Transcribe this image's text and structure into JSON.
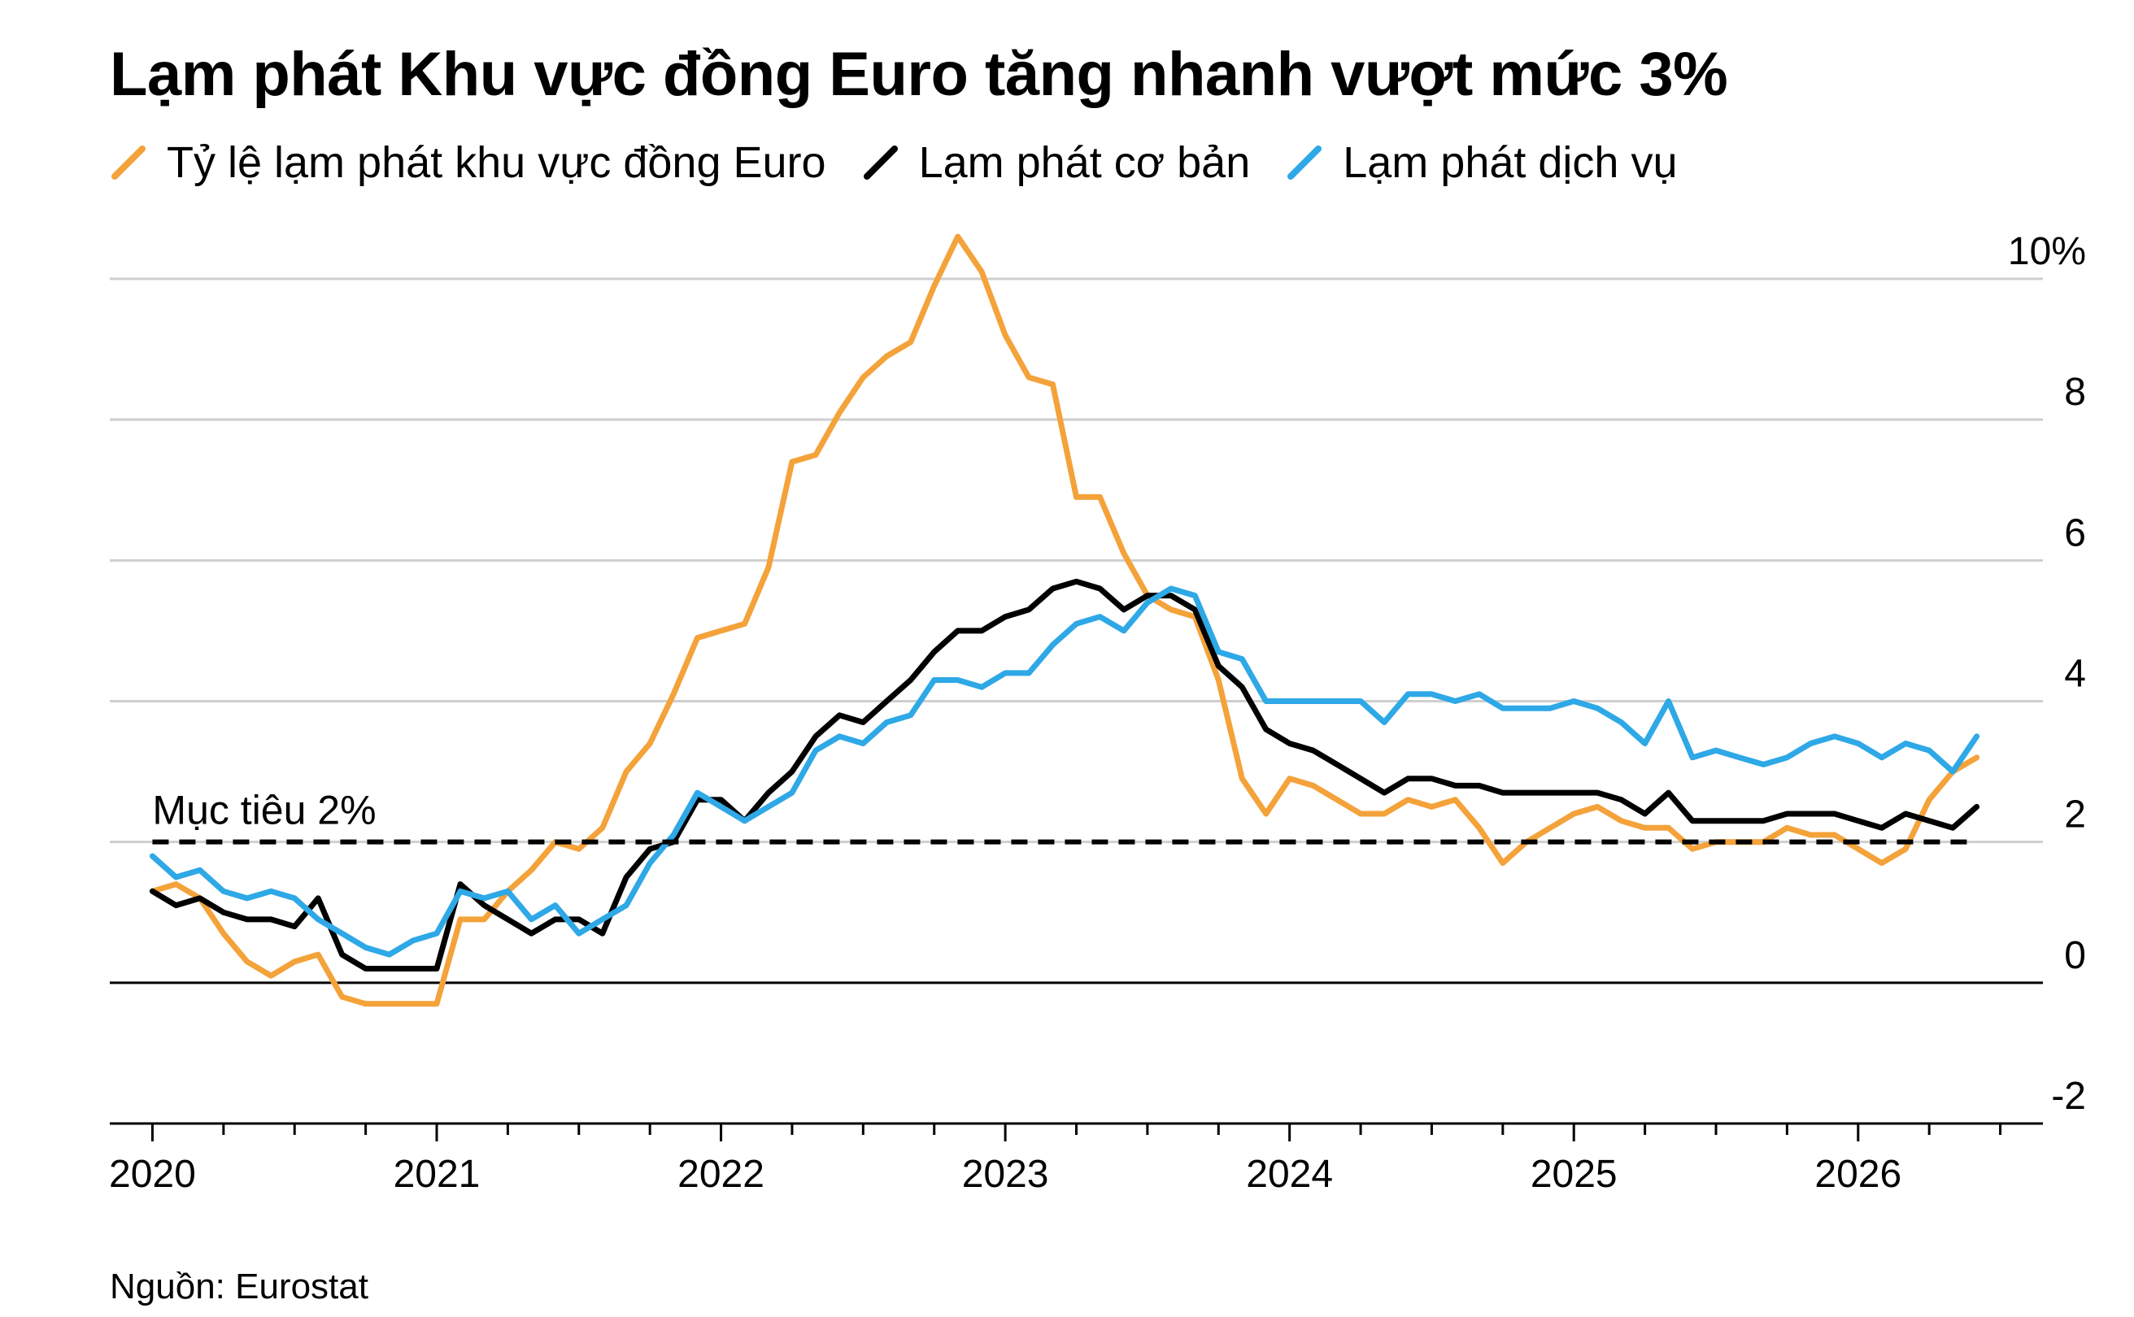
{
  "title": "Lạm phát Khu vực đồng Euro tăng nhanh vượt mức 3%",
  "source": "Nguồn: Eurostat",
  "chart_data": {
    "type": "line",
    "title": "Lạm phát Khu vực đồng Euro tăng nhanh vượt mức 3%",
    "xlabel": "",
    "ylabel": "",
    "x_axis": {
      "range": [
        2019.85,
        2026.65
      ],
      "ticks": [
        2020,
        2021,
        2022,
        2023,
        2024,
        2025,
        2026
      ],
      "tick_labels": [
        "2020",
        "2021",
        "2022",
        "2023",
        "2024",
        "2025",
        "2026"
      ],
      "minor_ticks_per_year": 4
    },
    "y_axis": {
      "range": [
        -2,
        10
      ],
      "ticks": [
        10,
        8,
        6,
        4,
        2,
        0,
        -2
      ],
      "tick_labels": [
        "10%",
        "8",
        "6",
        "4",
        "2",
        "0",
        "-2"
      ],
      "side": "right",
      "grid": true
    },
    "reference_line": {
      "value": 2,
      "label": "Mục tiêu 2%",
      "style": "dashed"
    },
    "legend_position": "top-left",
    "series": [
      {
        "name": "Tỷ lệ lạm phát khu vực đồng Euro",
        "color": "#F4A23A",
        "points": [
          [
            2020.0,
            1.3
          ],
          [
            2020.083,
            1.4
          ],
          [
            2020.167,
            1.2
          ],
          [
            2020.25,
            0.7
          ],
          [
            2020.333,
            0.3
          ],
          [
            2020.417,
            0.1
          ],
          [
            2020.5,
            0.3
          ],
          [
            2020.583,
            0.4
          ],
          [
            2020.667,
            -0.2
          ],
          [
            2020.75,
            -0.3
          ],
          [
            2020.833,
            -0.3
          ],
          [
            2020.917,
            -0.3
          ],
          [
            2021.0,
            -0.3
          ],
          [
            2021.083,
            0.9
          ],
          [
            2021.167,
            0.9
          ],
          [
            2021.25,
            1.3
          ],
          [
            2021.333,
            1.6
          ],
          [
            2021.417,
            2.0
          ],
          [
            2021.5,
            1.9
          ],
          [
            2021.583,
            2.2
          ],
          [
            2021.667,
            3.0
          ],
          [
            2021.75,
            3.4
          ],
          [
            2021.833,
            4.1
          ],
          [
            2021.917,
            4.9
          ],
          [
            2022.0,
            5.0
          ],
          [
            2022.083,
            5.1
          ],
          [
            2022.167,
            5.9
          ],
          [
            2022.25,
            7.4
          ],
          [
            2022.333,
            7.5
          ],
          [
            2022.417,
            8.1
          ],
          [
            2022.5,
            8.6
          ],
          [
            2022.583,
            8.9
          ],
          [
            2022.667,
            9.1
          ],
          [
            2022.75,
            9.9
          ],
          [
            2022.833,
            10.6
          ],
          [
            2022.917,
            10.1
          ],
          [
            2023.0,
            9.2
          ],
          [
            2023.083,
            8.6
          ],
          [
            2023.167,
            8.5
          ],
          [
            2023.25,
            6.9
          ],
          [
            2023.333,
            6.9
          ],
          [
            2023.417,
            6.1
          ],
          [
            2023.5,
            5.5
          ],
          [
            2023.583,
            5.3
          ],
          [
            2023.667,
            5.2
          ],
          [
            2023.75,
            4.3
          ],
          [
            2023.833,
            2.9
          ],
          [
            2023.917,
            2.4
          ],
          [
            2024.0,
            2.9
          ],
          [
            2024.083,
            2.8
          ],
          [
            2024.167,
            2.6
          ],
          [
            2024.25,
            2.4
          ],
          [
            2024.333,
            2.4
          ],
          [
            2024.417,
            2.6
          ],
          [
            2024.5,
            2.5
          ],
          [
            2024.583,
            2.6
          ],
          [
            2024.667,
            2.2
          ],
          [
            2024.75,
            1.7
          ],
          [
            2024.833,
            2.0
          ],
          [
            2024.917,
            2.2
          ],
          [
            2025.0,
            2.4
          ],
          [
            2025.083,
            2.5
          ],
          [
            2025.167,
            2.3
          ],
          [
            2025.25,
            2.2
          ],
          [
            2025.333,
            2.2
          ],
          [
            2025.417,
            1.9
          ],
          [
            2025.5,
            2.0
          ],
          [
            2025.583,
            2.0
          ],
          [
            2025.667,
            2.0
          ],
          [
            2025.75,
            2.2
          ],
          [
            2025.833,
            2.1
          ],
          [
            2025.917,
            2.1
          ],
          [
            2026.0,
            1.9
          ],
          [
            2026.083,
            1.7
          ],
          [
            2026.167,
            1.9
          ],
          [
            2026.25,
            2.6
          ],
          [
            2026.333,
            3.0
          ],
          [
            2026.417,
            3.2
          ]
        ]
      },
      {
        "name": "Lạm phát cơ bản",
        "color": "#000000",
        "points": [
          [
            2020.0,
            1.3
          ],
          [
            2020.083,
            1.1
          ],
          [
            2020.167,
            1.2
          ],
          [
            2020.25,
            1.0
          ],
          [
            2020.333,
            0.9
          ],
          [
            2020.417,
            0.9
          ],
          [
            2020.5,
            0.8
          ],
          [
            2020.583,
            1.2
          ],
          [
            2020.667,
            0.4
          ],
          [
            2020.75,
            0.2
          ],
          [
            2020.833,
            0.2
          ],
          [
            2020.917,
            0.2
          ],
          [
            2021.0,
            0.2
          ],
          [
            2021.083,
            1.4
          ],
          [
            2021.167,
            1.1
          ],
          [
            2021.25,
            0.9
          ],
          [
            2021.333,
            0.7
          ],
          [
            2021.417,
            0.9
          ],
          [
            2021.5,
            0.9
          ],
          [
            2021.583,
            0.7
          ],
          [
            2021.667,
            1.5
          ],
          [
            2021.75,
            1.9
          ],
          [
            2021.833,
            2.0
          ],
          [
            2021.917,
            2.6
          ],
          [
            2022.0,
            2.6
          ],
          [
            2022.083,
            2.3
          ],
          [
            2022.167,
            2.7
          ],
          [
            2022.25,
            3.0
          ],
          [
            2022.333,
            3.5
          ],
          [
            2022.417,
            3.8
          ],
          [
            2022.5,
            3.7
          ],
          [
            2022.583,
            4.0
          ],
          [
            2022.667,
            4.3
          ],
          [
            2022.75,
            4.7
          ],
          [
            2022.833,
            5.0
          ],
          [
            2022.917,
            5.0
          ],
          [
            2023.0,
            5.2
          ],
          [
            2023.083,
            5.3
          ],
          [
            2023.167,
            5.6
          ],
          [
            2023.25,
            5.7
          ],
          [
            2023.333,
            5.6
          ],
          [
            2023.417,
            5.3
          ],
          [
            2023.5,
            5.5
          ],
          [
            2023.583,
            5.5
          ],
          [
            2023.667,
            5.3
          ],
          [
            2023.75,
            4.5
          ],
          [
            2023.833,
            4.2
          ],
          [
            2023.917,
            3.6
          ],
          [
            2024.0,
            3.4
          ],
          [
            2024.083,
            3.3
          ],
          [
            2024.167,
            3.1
          ],
          [
            2024.25,
            2.9
          ],
          [
            2024.333,
            2.7
          ],
          [
            2024.417,
            2.9
          ],
          [
            2024.5,
            2.9
          ],
          [
            2024.583,
            2.8
          ],
          [
            2024.667,
            2.8
          ],
          [
            2024.75,
            2.7
          ],
          [
            2024.833,
            2.7
          ],
          [
            2024.917,
            2.7
          ],
          [
            2025.0,
            2.7
          ],
          [
            2025.083,
            2.7
          ],
          [
            2025.167,
            2.6
          ],
          [
            2025.25,
            2.4
          ],
          [
            2025.333,
            2.7
          ],
          [
            2025.417,
            2.3
          ],
          [
            2025.5,
            2.3
          ],
          [
            2025.583,
            2.3
          ],
          [
            2025.667,
            2.3
          ],
          [
            2025.75,
            2.4
          ],
          [
            2025.833,
            2.4
          ],
          [
            2025.917,
            2.4
          ],
          [
            2026.0,
            2.3
          ],
          [
            2026.083,
            2.2
          ],
          [
            2026.167,
            2.4
          ],
          [
            2026.25,
            2.3
          ],
          [
            2026.333,
            2.2
          ],
          [
            2026.417,
            2.5
          ]
        ]
      },
      {
        "name": "Lạm phát dịch vụ",
        "color": "#2EA8E6",
        "points": [
          [
            2020.0,
            1.8
          ],
          [
            2020.083,
            1.5
          ],
          [
            2020.167,
            1.6
          ],
          [
            2020.25,
            1.3
          ],
          [
            2020.333,
            1.2
          ],
          [
            2020.417,
            1.3
          ],
          [
            2020.5,
            1.2
          ],
          [
            2020.583,
            0.9
          ],
          [
            2020.667,
            0.7
          ],
          [
            2020.75,
            0.5
          ],
          [
            2020.833,
            0.4
          ],
          [
            2020.917,
            0.6
          ],
          [
            2021.0,
            0.7
          ],
          [
            2021.083,
            1.3
          ],
          [
            2021.167,
            1.2
          ],
          [
            2021.25,
            1.3
          ],
          [
            2021.333,
            0.9
          ],
          [
            2021.417,
            1.1
          ],
          [
            2021.5,
            0.7
          ],
          [
            2021.583,
            0.9
          ],
          [
            2021.667,
            1.1
          ],
          [
            2021.75,
            1.7
          ],
          [
            2021.833,
            2.1
          ],
          [
            2021.917,
            2.7
          ],
          [
            2022.0,
            2.5
          ],
          [
            2022.083,
            2.3
          ],
          [
            2022.167,
            2.5
          ],
          [
            2022.25,
            2.7
          ],
          [
            2022.333,
            3.3
          ],
          [
            2022.417,
            3.5
          ],
          [
            2022.5,
            3.4
          ],
          [
            2022.583,
            3.7
          ],
          [
            2022.667,
            3.8
          ],
          [
            2022.75,
            4.3
          ],
          [
            2022.833,
            4.3
          ],
          [
            2022.917,
            4.2
          ],
          [
            2023.0,
            4.4
          ],
          [
            2023.083,
            4.4
          ],
          [
            2023.167,
            4.8
          ],
          [
            2023.25,
            5.1
          ],
          [
            2023.333,
            5.2
          ],
          [
            2023.417,
            5.0
          ],
          [
            2023.5,
            5.4
          ],
          [
            2023.583,
            5.6
          ],
          [
            2023.667,
            5.5
          ],
          [
            2023.75,
            4.7
          ],
          [
            2023.833,
            4.6
          ],
          [
            2023.917,
            4.0
          ],
          [
            2024.0,
            4.0
          ],
          [
            2024.083,
            4.0
          ],
          [
            2024.167,
            4.0
          ],
          [
            2024.25,
            4.0
          ],
          [
            2024.333,
            3.7
          ],
          [
            2024.417,
            4.1
          ],
          [
            2024.5,
            4.1
          ],
          [
            2024.583,
            4.0
          ],
          [
            2024.667,
            4.1
          ],
          [
            2024.75,
            3.9
          ],
          [
            2024.833,
            3.9
          ],
          [
            2024.917,
            3.9
          ],
          [
            2025.0,
            4.0
          ],
          [
            2025.083,
            3.9
          ],
          [
            2025.167,
            3.7
          ],
          [
            2025.25,
            3.4
          ],
          [
            2025.333,
            4.0
          ],
          [
            2025.417,
            3.2
          ],
          [
            2025.5,
            3.3
          ],
          [
            2025.583,
            3.2
          ],
          [
            2025.667,
            3.1
          ],
          [
            2025.75,
            3.2
          ],
          [
            2025.833,
            3.4
          ],
          [
            2025.917,
            3.5
          ],
          [
            2026.0,
            3.4
          ],
          [
            2026.083,
            3.2
          ],
          [
            2026.167,
            3.4
          ],
          [
            2026.25,
            3.3
          ],
          [
            2026.333,
            3.0
          ],
          [
            2026.417,
            3.5
          ]
        ]
      }
    ]
  }
}
